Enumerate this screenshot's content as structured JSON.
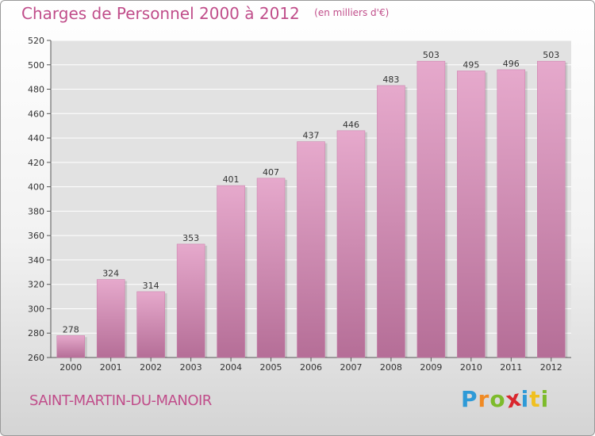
{
  "chart_data": {
    "type": "bar",
    "title": "Charges de Personnel 2000 à 2012",
    "subtitle": "(en milliers d'€)",
    "categories": [
      "2000",
      "2001",
      "2002",
      "2003",
      "2004",
      "2005",
      "2006",
      "2007",
      "2008",
      "2009",
      "2010",
      "2011",
      "2012"
    ],
    "values": [
      278,
      324,
      314,
      353,
      401,
      407,
      437,
      446,
      483,
      503,
      495,
      496,
      503
    ],
    "ylim": [
      260,
      520
    ],
    "yticks": [
      260,
      280,
      300,
      320,
      340,
      360,
      380,
      400,
      420,
      440,
      460,
      480,
      500,
      520
    ],
    "grid": true,
    "bar_color": "#d98bb8",
    "bar_color_top": "#e6a9cc",
    "bar_color_bottom": "#b56e97"
  },
  "footer": {
    "commune": "SAINT-MARTIN-DU-MANOIR",
    "logo_letters": [
      "P",
      "r",
      "o",
      "x",
      "i",
      "t",
      "i"
    ],
    "logo_colors": [
      "#2e9ad7",
      "#f08a24",
      "#7dbb2b",
      "#d9262e",
      "#2e9ad7",
      "#f0c020",
      "#7dbb2b"
    ]
  },
  "colors": {
    "accent": "#c04d8a",
    "grid": "#ffffff",
    "plot_bg": "#e2e2e2"
  }
}
